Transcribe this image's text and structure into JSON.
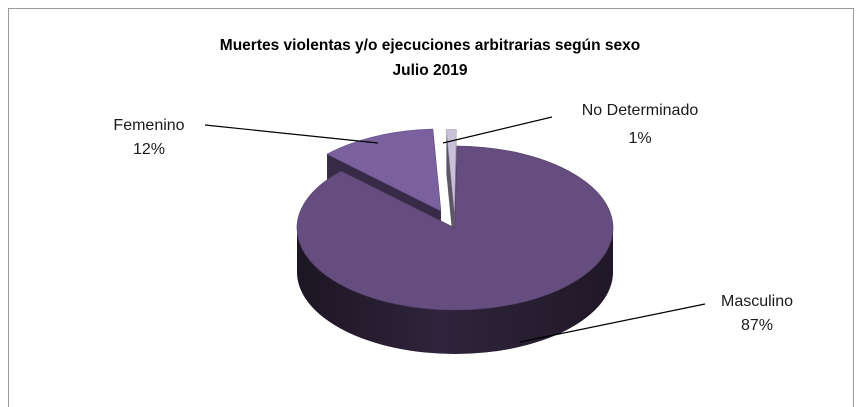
{
  "chart_data": {
    "type": "pie",
    "style": "3d-exploded",
    "title": "Muertes violentas y/o ejecuciones arbitrarias según sexo",
    "subtitle": "Julio 2019",
    "legend": "none",
    "slices": [
      {
        "name": "Masculino",
        "value": 87,
        "label": "87%",
        "color": "#654d80"
      },
      {
        "name": "Femenino",
        "value": 12,
        "label": "12%",
        "color": "#7b60a0"
      },
      {
        "name": "No Determinado",
        "value": 1,
        "label": "1%",
        "color": "#c9c0da"
      }
    ]
  }
}
